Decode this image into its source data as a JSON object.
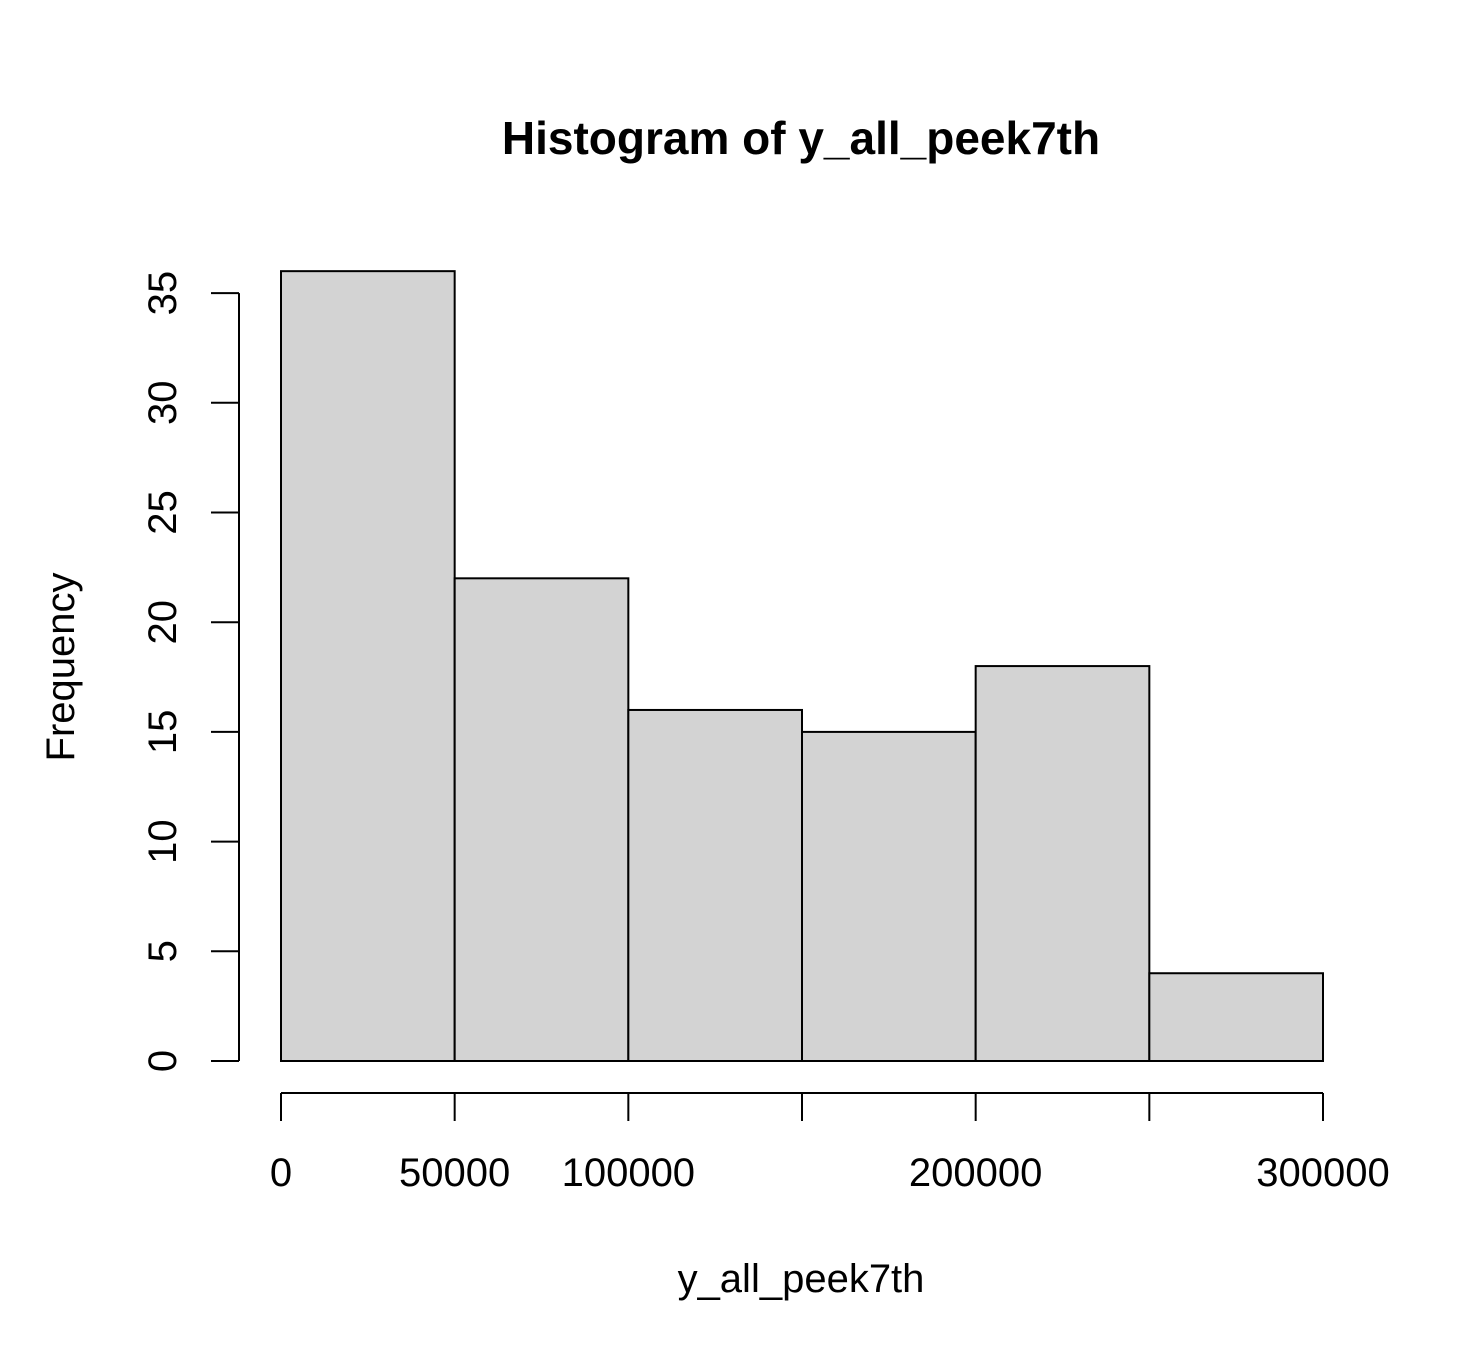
{
  "chart_data": {
    "type": "bar",
    "title": "Histogram of y_all_peek7th",
    "xlabel": "y_all_peek7th",
    "ylabel": "Frequency",
    "bins": [
      {
        "start": 0,
        "end": 50000,
        "count": 36
      },
      {
        "start": 50000,
        "end": 100000,
        "count": 22
      },
      {
        "start": 100000,
        "end": 150000,
        "count": 16
      },
      {
        "start": 150000,
        "end": 200000,
        "count": 15
      },
      {
        "start": 200000,
        "end": 250000,
        "count": 18
      },
      {
        "start": 250000,
        "end": 300000,
        "count": 4
      }
    ],
    "xlim": [
      0,
      300000
    ],
    "ylim": [
      0,
      36
    ],
    "x_ticks": [
      0,
      50000,
      100000,
      150000,
      200000,
      250000,
      300000
    ],
    "x_tick_labels": [
      "0",
      "50000",
      "100000",
      "",
      "200000",
      "",
      "300000"
    ],
    "y_ticks": [
      0,
      5,
      10,
      15,
      20,
      25,
      30,
      35
    ],
    "y_tick_labels": [
      "0",
      "5",
      "10",
      "15",
      "20",
      "25",
      "30",
      "35"
    ],
    "grid": false,
    "colors": {
      "bar_fill": "#d3d3d3",
      "bar_stroke": "#000000",
      "axis": "#000000"
    }
  }
}
